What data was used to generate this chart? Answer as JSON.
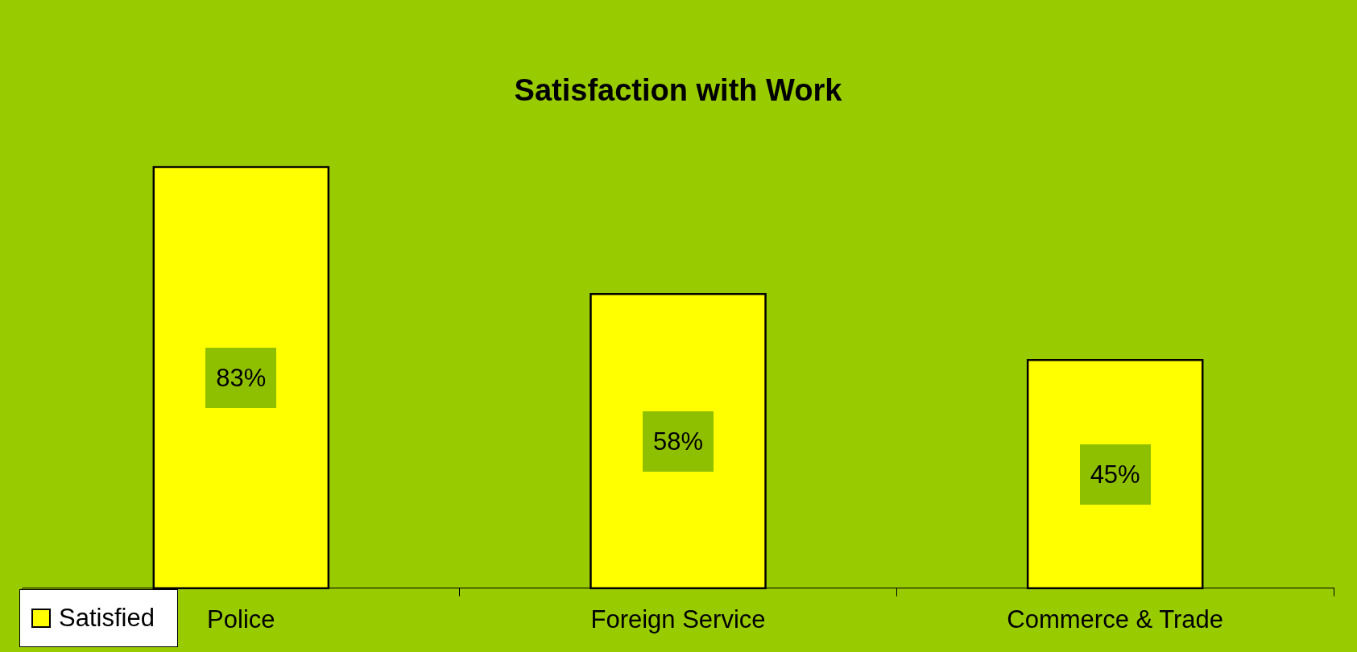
{
  "chart_data": {
    "type": "bar",
    "title": "Satisfaction with Work",
    "categories": [
      "Police",
      "Foreign Service",
      "Commerce & Trade"
    ],
    "series": [
      {
        "name": "Satisfied",
        "color": "#ffff00",
        "values": [
          83,
          58,
          45
        ],
        "value_labels": [
          "83%",
          "58%",
          "45%"
        ]
      }
    ],
    "legend": "bottom left",
    "grid": false
  }
}
